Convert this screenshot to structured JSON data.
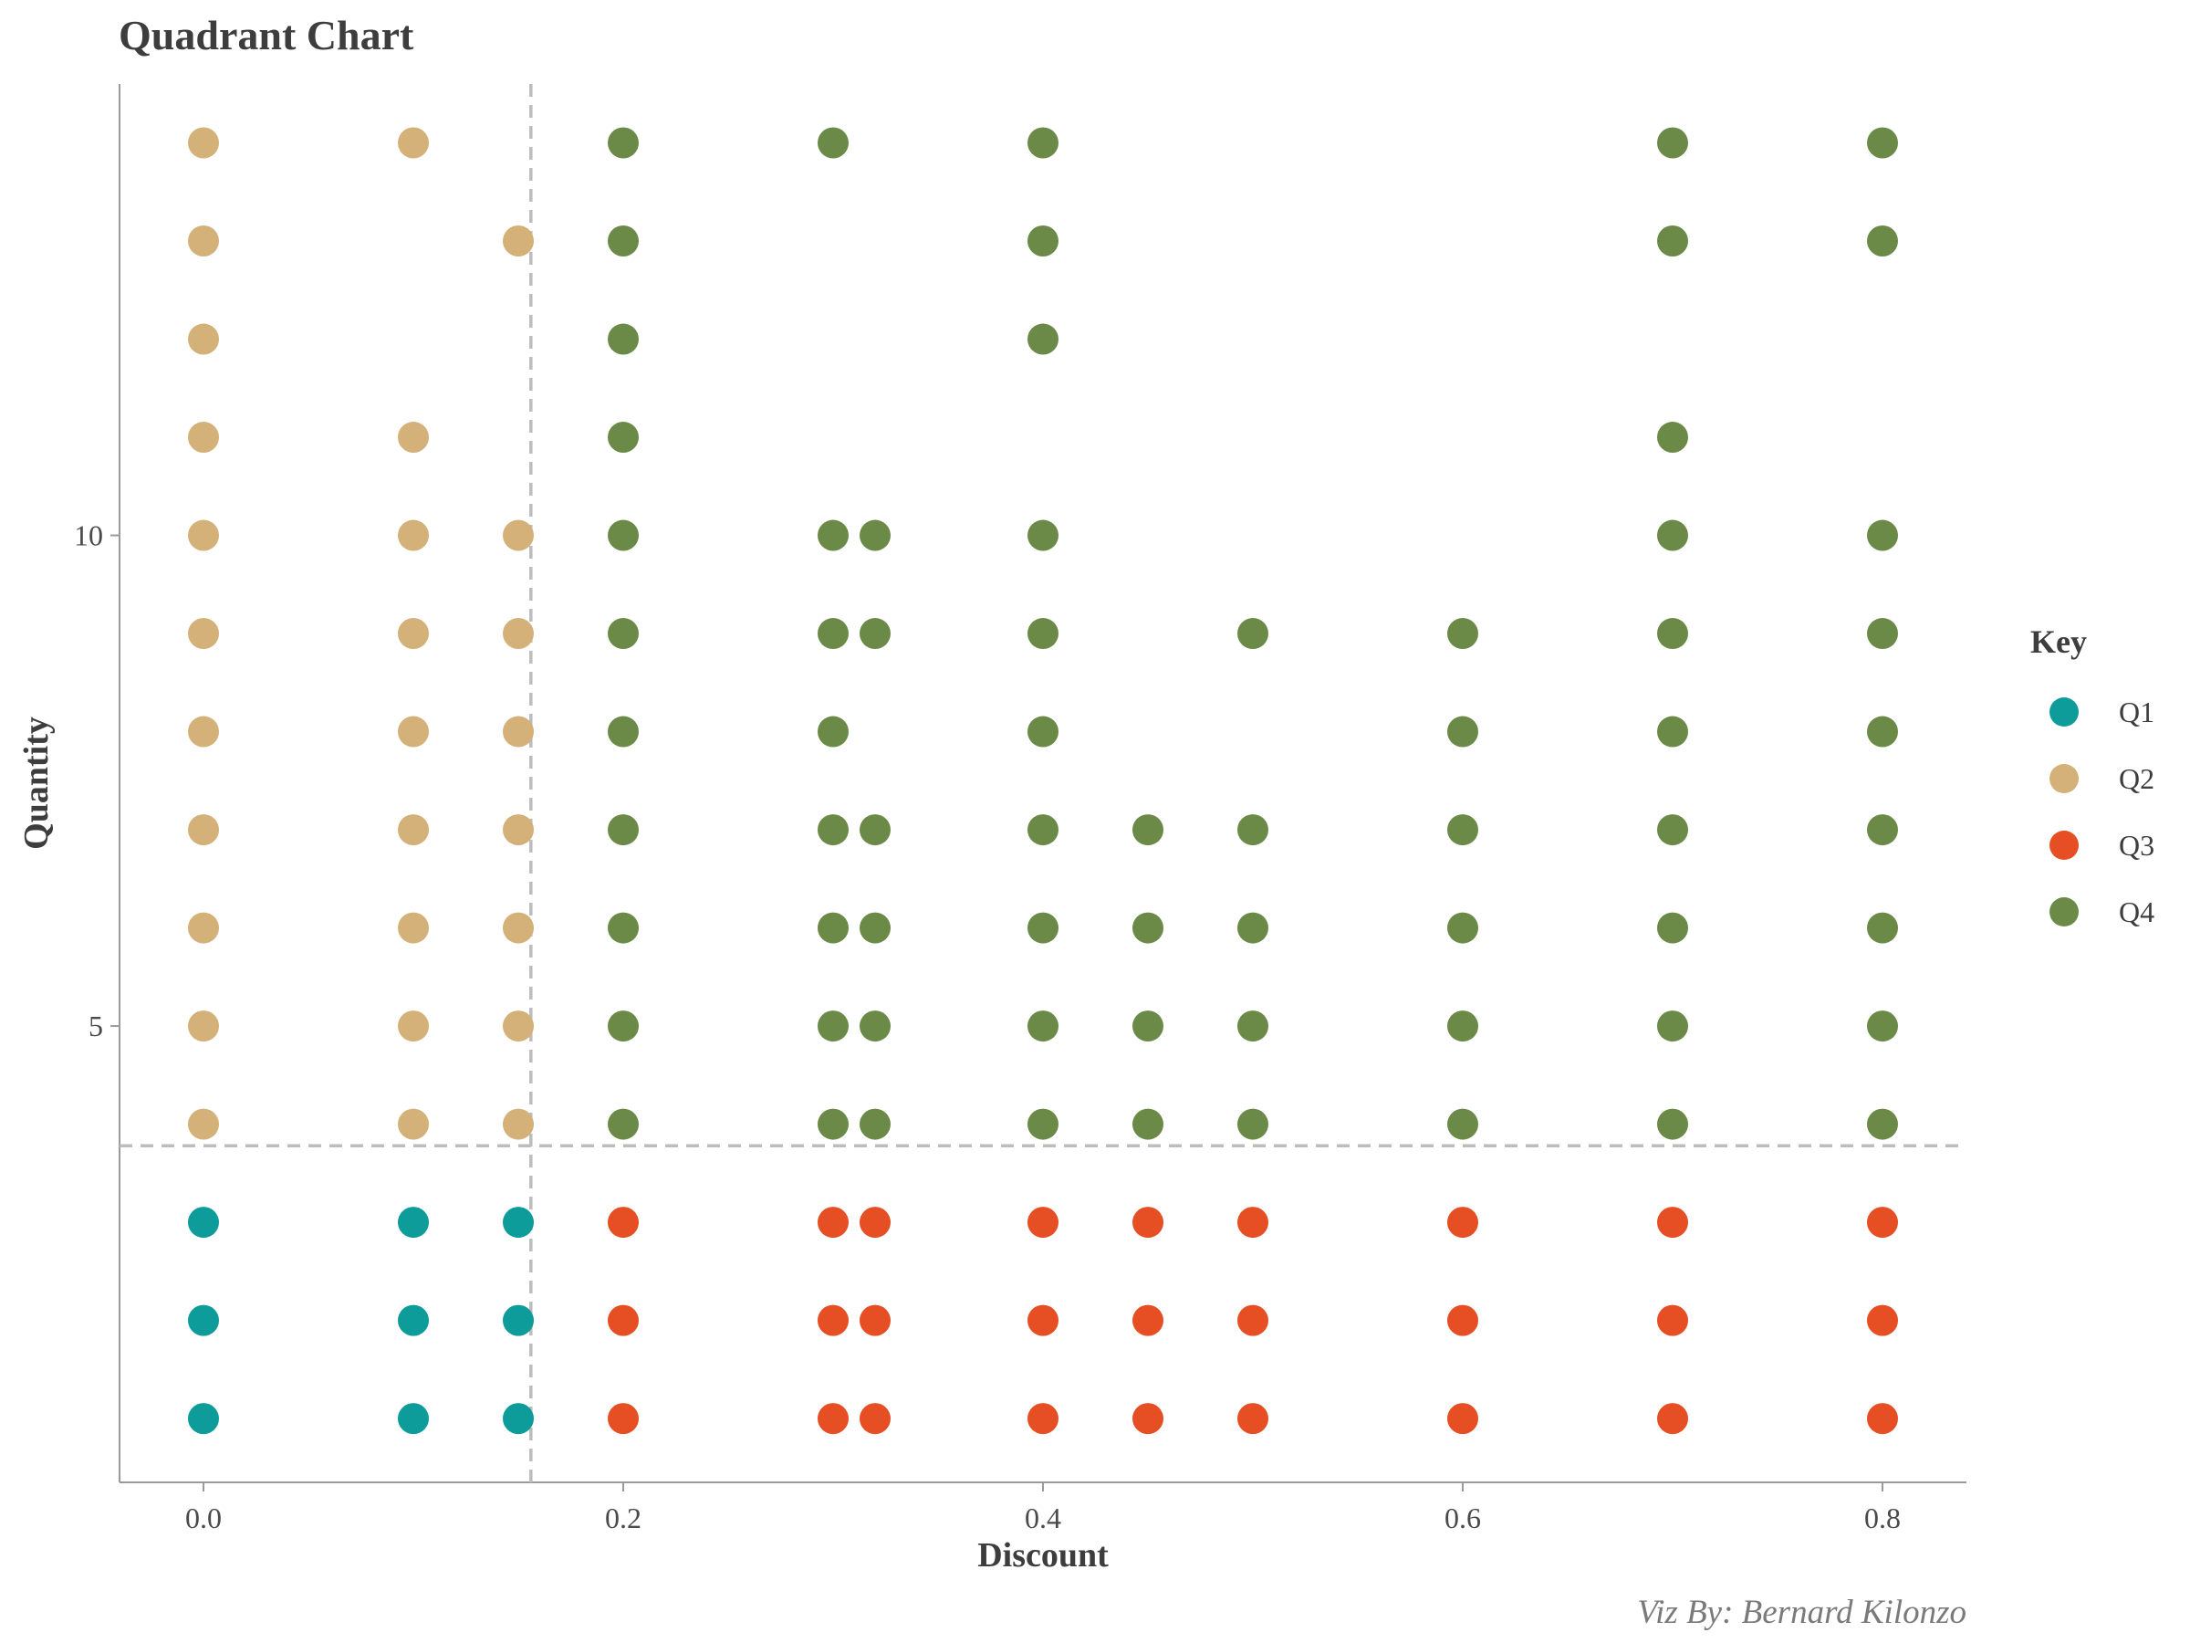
{
  "chart_data": {
    "type": "scatter",
    "title": "Quadrant Chart",
    "xlabel": "Discount",
    "ylabel": "Quantity",
    "caption": "Viz By: Bernard Kilonzo",
    "xlim": [
      -0.04,
      0.84
    ],
    "ylim": [
      0.35,
      14.6
    ],
    "x_ticks": [
      0.0,
      0.2,
      0.4,
      0.6,
      0.8
    ],
    "x_tick_labels": [
      "0.0",
      "0.2",
      "0.4",
      "0.6",
      "0.8"
    ],
    "y_ticks": [
      5,
      10
    ],
    "y_tick_labels": [
      "5",
      "10"
    ],
    "reference_lines": {
      "x": 0.156,
      "y": 3.78,
      "style": "dashed",
      "color": "#bdbdbd"
    },
    "legend": {
      "title": "Key",
      "placement": "right"
    },
    "series": [
      {
        "name": "Q1",
        "color": "#0e9c9a",
        "points": [
          [
            0,
            1
          ],
          [
            0,
            2
          ],
          [
            0,
            3
          ],
          [
            0.1,
            1
          ],
          [
            0.1,
            2
          ],
          [
            0.1,
            3
          ],
          [
            0.15,
            1
          ],
          [
            0.15,
            2
          ],
          [
            0.15,
            3
          ]
        ]
      },
      {
        "name": "Q2",
        "color": "#d3b178",
        "points": [
          [
            0,
            4
          ],
          [
            0,
            5
          ],
          [
            0,
            6
          ],
          [
            0,
            7
          ],
          [
            0,
            8
          ],
          [
            0,
            9
          ],
          [
            0,
            10
          ],
          [
            0,
            11
          ],
          [
            0,
            12
          ],
          [
            0,
            13
          ],
          [
            0,
            14
          ],
          [
            0.1,
            4
          ],
          [
            0.1,
            5
          ],
          [
            0.1,
            6
          ],
          [
            0.1,
            7
          ],
          [
            0.1,
            8
          ],
          [
            0.1,
            9
          ],
          [
            0.1,
            10
          ],
          [
            0.1,
            11
          ],
          [
            0.1,
            14
          ],
          [
            0.15,
            4
          ],
          [
            0.15,
            5
          ],
          [
            0.15,
            6
          ],
          [
            0.15,
            7
          ],
          [
            0.15,
            8
          ],
          [
            0.15,
            9
          ],
          [
            0.15,
            10
          ],
          [
            0.15,
            13
          ]
        ]
      },
      {
        "name": "Q3",
        "color": "#e64e23",
        "points": [
          [
            0.2,
            1
          ],
          [
            0.2,
            2
          ],
          [
            0.2,
            3
          ],
          [
            0.3,
            1
          ],
          [
            0.3,
            2
          ],
          [
            0.3,
            3
          ],
          [
            0.32,
            1
          ],
          [
            0.32,
            2
          ],
          [
            0.32,
            3
          ],
          [
            0.4,
            1
          ],
          [
            0.4,
            2
          ],
          [
            0.4,
            3
          ],
          [
            0.45,
            1
          ],
          [
            0.45,
            2
          ],
          [
            0.45,
            3
          ],
          [
            0.5,
            1
          ],
          [
            0.5,
            2
          ],
          [
            0.5,
            3
          ],
          [
            0.6,
            1
          ],
          [
            0.6,
            2
          ],
          [
            0.6,
            3
          ],
          [
            0.7,
            1
          ],
          [
            0.7,
            2
          ],
          [
            0.7,
            3
          ],
          [
            0.8,
            1
          ],
          [
            0.8,
            2
          ],
          [
            0.8,
            3
          ]
        ]
      },
      {
        "name": "Q4",
        "color": "#6b8a47",
        "points": [
          [
            0.2,
            4
          ],
          [
            0.2,
            5
          ],
          [
            0.2,
            6
          ],
          [
            0.2,
            7
          ],
          [
            0.2,
            8
          ],
          [
            0.2,
            9
          ],
          [
            0.2,
            10
          ],
          [
            0.2,
            11
          ],
          [
            0.2,
            12
          ],
          [
            0.2,
            13
          ],
          [
            0.2,
            14
          ],
          [
            0.3,
            4
          ],
          [
            0.3,
            5
          ],
          [
            0.3,
            6
          ],
          [
            0.3,
            7
          ],
          [
            0.3,
            8
          ],
          [
            0.3,
            9
          ],
          [
            0.3,
            10
          ],
          [
            0.3,
            14
          ],
          [
            0.32,
            4
          ],
          [
            0.32,
            5
          ],
          [
            0.32,
            6
          ],
          [
            0.32,
            7
          ],
          [
            0.32,
            9
          ],
          [
            0.32,
            10
          ],
          [
            0.4,
            4
          ],
          [
            0.4,
            5
          ],
          [
            0.4,
            6
          ],
          [
            0.4,
            7
          ],
          [
            0.4,
            8
          ],
          [
            0.4,
            9
          ],
          [
            0.4,
            10
          ],
          [
            0.4,
            12
          ],
          [
            0.4,
            13
          ],
          [
            0.4,
            14
          ],
          [
            0.45,
            4
          ],
          [
            0.45,
            5
          ],
          [
            0.45,
            6
          ],
          [
            0.45,
            7
          ],
          [
            0.5,
            4
          ],
          [
            0.5,
            5
          ],
          [
            0.5,
            6
          ],
          [
            0.5,
            7
          ],
          [
            0.5,
            9
          ],
          [
            0.6,
            4
          ],
          [
            0.6,
            5
          ],
          [
            0.6,
            6
          ],
          [
            0.6,
            7
          ],
          [
            0.6,
            8
          ],
          [
            0.6,
            9
          ],
          [
            0.7,
            4
          ],
          [
            0.7,
            5
          ],
          [
            0.7,
            6
          ],
          [
            0.7,
            7
          ],
          [
            0.7,
            8
          ],
          [
            0.7,
            9
          ],
          [
            0.7,
            10
          ],
          [
            0.7,
            11
          ],
          [
            0.7,
            13
          ],
          [
            0.7,
            14
          ],
          [
            0.8,
            4
          ],
          [
            0.8,
            5
          ],
          [
            0.8,
            6
          ],
          [
            0.8,
            7
          ],
          [
            0.8,
            8
          ],
          [
            0.8,
            9
          ],
          [
            0.8,
            10
          ],
          [
            0.8,
            13
          ],
          [
            0.8,
            14
          ]
        ]
      }
    ]
  }
}
